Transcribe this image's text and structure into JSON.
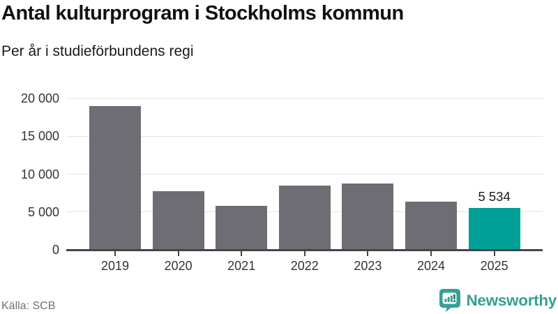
{
  "header": {
    "title": "Antal kulturprogram i Stockholms kommun",
    "subtitle": "Per år i studieförbundens regi"
  },
  "footer": {
    "source": "Källa: SCB",
    "brand": "Newsworthy"
  },
  "colors": {
    "bar_default": "#6d6d73",
    "bar_highlight": "#00a096",
    "gridline": "#e3e3e3",
    "axis_line": "#444449",
    "axis_text": "#333338",
    "brand_teal": "#35a094",
    "background": "#ffffff"
  },
  "chart_data": {
    "type": "bar",
    "title": "Antal kulturprogram i Stockholms kommun",
    "subtitle": "Per år i studieförbundens regi",
    "categories": [
      "2019",
      "2020",
      "2021",
      "2022",
      "2023",
      "2024",
      "2025"
    ],
    "values": [
      19000,
      7700,
      5800,
      8500,
      8800,
      6400,
      5534
    ],
    "data_labels": [
      "",
      "",
      "",
      "",
      "",
      "",
      "5 534"
    ],
    "highlight_index": 6,
    "xlabel": "",
    "ylabel": "",
    "ylim": [
      0,
      20000
    ],
    "yticks": [
      0,
      5000,
      10000,
      15000,
      20000
    ],
    "ytick_labels": [
      "0",
      "5 000",
      "10 000",
      "15 000",
      "20 000"
    ],
    "grid": true,
    "legend": false
  }
}
